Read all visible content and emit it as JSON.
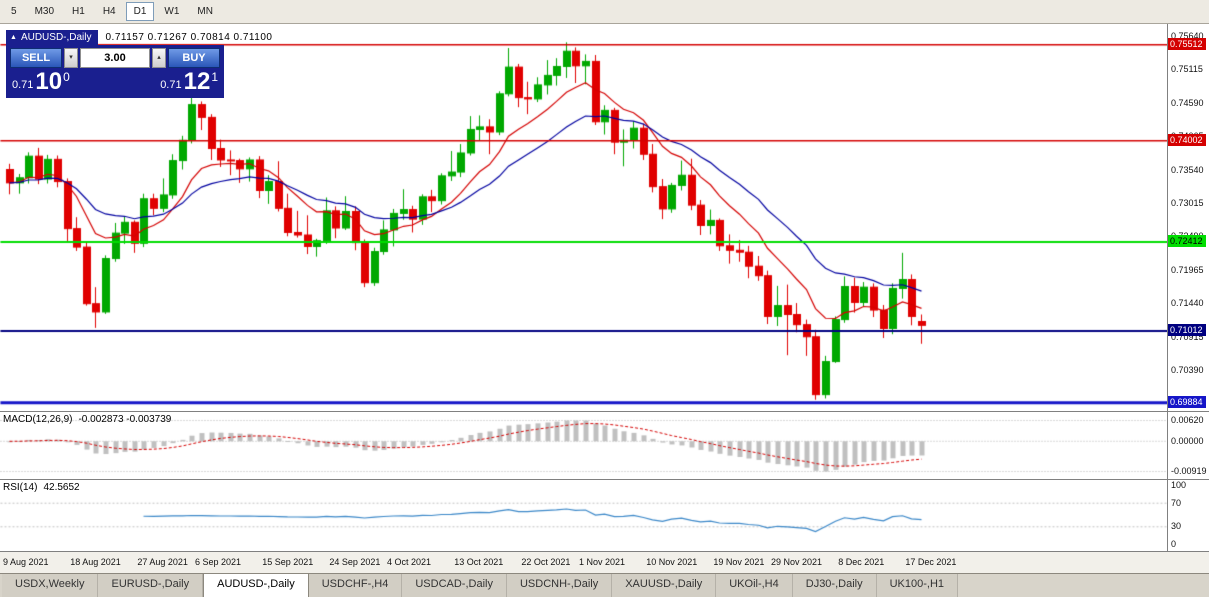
{
  "toolbar": {
    "timeframes": [
      {
        "label": "5",
        "active": false
      },
      {
        "label": "M30",
        "active": false
      },
      {
        "label": "H1",
        "active": false
      },
      {
        "label": "H4",
        "active": false
      },
      {
        "label": "D1",
        "active": true
      },
      {
        "label": "W1",
        "active": false
      },
      {
        "label": "MN",
        "active": false
      }
    ]
  },
  "chart_header": {
    "collapse_icon": "▲",
    "symbol": "AUDUSD-,Daily",
    "ohlc": "0.71157 0.71267 0.70814 0.71100"
  },
  "one_click": {
    "sell_label": "SELL",
    "buy_label": "BUY",
    "lot_value": "3.00",
    "spin_down_icon": "▾",
    "spin_up_icon": "▴",
    "bid": {
      "small": "0.71",
      "big": "10",
      "sup": "0"
    },
    "ask": {
      "small": "0.71",
      "big": "12",
      "sup": "1"
    },
    "colors": {
      "panel_bg": "#1a1f8f",
      "button": "#2a56b8"
    }
  },
  "chart_data": {
    "type": "candlestick",
    "symbol": "AUDUSD-,Daily",
    "ohlc_display": {
      "open": "0.71157",
      "high": "0.71267",
      "low": "0.70814",
      "close": "0.71100"
    },
    "price_range": [
      0.69745,
      0.7583
    ],
    "candle_up_color": "#00a800",
    "candle_down_color": "#e00000",
    "start_date": "9 Aug 2021",
    "candles": [
      [
        0.7355,
        0.7364,
        0.7316,
        0.7334
      ],
      [
        0.7334,
        0.7348,
        0.7317,
        0.7342
      ],
      [
        0.7342,
        0.7382,
        0.7333,
        0.7376
      ],
      [
        0.7376,
        0.7389,
        0.7332,
        0.734
      ],
      [
        0.734,
        0.7378,
        0.7333,
        0.7371
      ],
      [
        0.7371,
        0.7377,
        0.7327,
        0.7336
      ],
      [
        0.7336,
        0.7341,
        0.7241,
        0.7262
      ],
      [
        0.7262,
        0.728,
        0.7227,
        0.7233
      ],
      [
        0.7233,
        0.724,
        0.7141,
        0.7144
      ],
      [
        0.7144,
        0.717,
        0.7106,
        0.7131
      ],
      [
        0.7131,
        0.722,
        0.7128,
        0.7215
      ],
      [
        0.7215,
        0.7271,
        0.721,
        0.7255
      ],
      [
        0.7255,
        0.7281,
        0.7238,
        0.7272
      ],
      [
        0.7272,
        0.7275,
        0.7224,
        0.7239
      ],
      [
        0.7239,
        0.7317,
        0.7233,
        0.7309
      ],
      [
        0.7309,
        0.7317,
        0.7283,
        0.7294
      ],
      [
        0.7294,
        0.7341,
        0.7288,
        0.7315
      ],
      [
        0.7315,
        0.7379,
        0.7309,
        0.7369
      ],
      [
        0.7369,
        0.7408,
        0.7355,
        0.7401
      ],
      [
        0.7401,
        0.7478,
        0.7396,
        0.7457
      ],
      [
        0.7457,
        0.7462,
        0.7417,
        0.7437
      ],
      [
        0.7437,
        0.7442,
        0.737,
        0.7388
      ],
      [
        0.7388,
        0.7402,
        0.7359,
        0.737
      ],
      [
        0.737,
        0.7385,
        0.7346,
        0.7369
      ],
      [
        0.7369,
        0.7372,
        0.7334,
        0.7356
      ],
      [
        0.7356,
        0.7374,
        0.7336,
        0.737
      ],
      [
        0.737,
        0.7376,
        0.731,
        0.7322
      ],
      [
        0.7322,
        0.7346,
        0.7301,
        0.7336
      ],
      [
        0.7336,
        0.7368,
        0.7289,
        0.7294
      ],
      [
        0.7294,
        0.7317,
        0.725,
        0.7256
      ],
      [
        0.7256,
        0.729,
        0.7248,
        0.7252
      ],
      [
        0.7252,
        0.7283,
        0.7222,
        0.7234
      ],
      [
        0.7234,
        0.7246,
        0.7218,
        0.7243
      ],
      [
        0.7243,
        0.7311,
        0.7238,
        0.729
      ],
      [
        0.729,
        0.7297,
        0.7247,
        0.7263
      ],
      [
        0.7263,
        0.7313,
        0.726,
        0.7289
      ],
      [
        0.7289,
        0.7297,
        0.7228,
        0.724
      ],
      [
        0.724,
        0.7245,
        0.717,
        0.7177
      ],
      [
        0.7177,
        0.7232,
        0.7172,
        0.7226
      ],
      [
        0.7226,
        0.7275,
        0.7221,
        0.726
      ],
      [
        0.726,
        0.7293,
        0.7234,
        0.7286
      ],
      [
        0.7286,
        0.7324,
        0.7276,
        0.7292
      ],
      [
        0.7292,
        0.7298,
        0.7256,
        0.7277
      ],
      [
        0.7277,
        0.7316,
        0.7268,
        0.7312
      ],
      [
        0.7312,
        0.7323,
        0.7288,
        0.7306
      ],
      [
        0.7306,
        0.7349,
        0.73,
        0.7345
      ],
      [
        0.7345,
        0.7384,
        0.7337,
        0.7351
      ],
      [
        0.7351,
        0.7395,
        0.7343,
        0.7381
      ],
      [
        0.7381,
        0.7439,
        0.7377,
        0.7418
      ],
      [
        0.7418,
        0.744,
        0.7401,
        0.7422
      ],
      [
        0.7422,
        0.7434,
        0.7379,
        0.7414
      ],
      [
        0.7414,
        0.7478,
        0.7409,
        0.7474
      ],
      [
        0.7474,
        0.7546,
        0.747,
        0.7516
      ],
      [
        0.7516,
        0.7521,
        0.7453,
        0.7468
      ],
      [
        0.7468,
        0.7493,
        0.7442,
        0.7466
      ],
      [
        0.7466,
        0.75,
        0.7461,
        0.7488
      ],
      [
        0.7488,
        0.7527,
        0.7473,
        0.7503
      ],
      [
        0.7503,
        0.753,
        0.7487,
        0.7517
      ],
      [
        0.7517,
        0.7555,
        0.7499,
        0.7541
      ],
      [
        0.7541,
        0.7547,
        0.7491,
        0.7518
      ],
      [
        0.7518,
        0.7536,
        0.7489,
        0.7525
      ],
      [
        0.7525,
        0.7535,
        0.7425,
        0.743
      ],
      [
        0.743,
        0.7456,
        0.741,
        0.7448
      ],
      [
        0.7448,
        0.7452,
        0.7379,
        0.7398
      ],
      [
        0.7398,
        0.7418,
        0.736,
        0.7401
      ],
      [
        0.7401,
        0.7431,
        0.7388,
        0.742
      ],
      [
        0.742,
        0.7427,
        0.737,
        0.7379
      ],
      [
        0.7379,
        0.7395,
        0.7319,
        0.7328
      ],
      [
        0.7328,
        0.734,
        0.7277,
        0.7293
      ],
      [
        0.7293,
        0.7334,
        0.7287,
        0.733
      ],
      [
        0.733,
        0.7369,
        0.7322,
        0.7346
      ],
      [
        0.7346,
        0.7372,
        0.7291,
        0.7299
      ],
      [
        0.7299,
        0.7307,
        0.7252,
        0.7267
      ],
      [
        0.7267,
        0.7292,
        0.7253,
        0.7275
      ],
      [
        0.7275,
        0.7278,
        0.7227,
        0.7235
      ],
      [
        0.7235,
        0.7253,
        0.7207,
        0.7228
      ],
      [
        0.7228,
        0.7244,
        0.721,
        0.7225
      ],
      [
        0.7225,
        0.7235,
        0.7184,
        0.7203
      ],
      [
        0.7203,
        0.7219,
        0.718,
        0.7188
      ],
      [
        0.7188,
        0.7196,
        0.7112,
        0.7124
      ],
      [
        0.7124,
        0.7172,
        0.7109,
        0.7141
      ],
      [
        0.7141,
        0.7174,
        0.7063,
        0.7127
      ],
      [
        0.7127,
        0.7145,
        0.7099,
        0.7111
      ],
      [
        0.7111,
        0.7119,
        0.7062,
        0.7092
      ],
      [
        0.7092,
        0.7103,
        0.6993,
        0.7001
      ],
      [
        0.7001,
        0.7062,
        0.6995,
        0.7053
      ],
      [
        0.7053,
        0.7124,
        0.7051,
        0.7119
      ],
      [
        0.7119,
        0.7187,
        0.7114,
        0.7171
      ],
      [
        0.7171,
        0.7185,
        0.713,
        0.7146
      ],
      [
        0.7146,
        0.7178,
        0.7139,
        0.717
      ],
      [
        0.717,
        0.7176,
        0.7123,
        0.7134
      ],
      [
        0.7134,
        0.7142,
        0.709,
        0.7105
      ],
      [
        0.7105,
        0.7176,
        0.7096,
        0.7168
      ],
      [
        0.7168,
        0.7224,
        0.7152,
        0.7182
      ],
      [
        0.7182,
        0.719,
        0.711,
        0.7124
      ],
      [
        0.7116,
        0.7127,
        0.7081,
        0.711
      ]
    ],
    "date_axis": [
      {
        "label": "9 Aug 2021",
        "i": 0
      },
      {
        "label": "18 Aug 2021",
        "i": 7
      },
      {
        "label": "27 Aug 2021",
        "i": 14
      },
      {
        "label": "6 Sep 2021",
        "i": 20
      },
      {
        "label": "15 Sep 2021",
        "i": 27
      },
      {
        "label": "24 Sep 2021",
        "i": 34
      },
      {
        "label": "4 Oct 2021",
        "i": 40
      },
      {
        "label": "13 Oct 2021",
        "i": 47
      },
      {
        "label": "22 Oct 2021",
        "i": 54
      },
      {
        "label": "1 Nov 2021",
        "i": 60
      },
      {
        "label": "10 Nov 2021",
        "i": 67
      },
      {
        "label": "19 Nov 2021",
        "i": 74
      },
      {
        "label": "29 Nov 2021",
        "i": 80
      },
      {
        "label": "8 Dec 2021",
        "i": 87
      },
      {
        "label": "17 Dec 2021",
        "i": 94
      }
    ],
    "price_axis_ticks": [
      "0.75640",
      "0.75115",
      "0.74590",
      "0.74065",
      "0.73540",
      "0.73015",
      "0.72490",
      "0.71965",
      "0.71440",
      "0.70915",
      "0.70390"
    ],
    "hlines": [
      {
        "value": 0.75512,
        "label": "0.75512",
        "color": "#d40000",
        "text": "#ffffff",
        "width": 1.5
      },
      {
        "value": 0.74002,
        "label": "0.74002",
        "color": "#d40000",
        "text": "#ffffff",
        "width": 1.5
      },
      {
        "value": 0.72412,
        "label": "0.72412",
        "color": "#00dd00",
        "text": "#000000",
        "width": 2
      },
      {
        "value": 0.71012,
        "label": "0.71012",
        "color": "#000080",
        "text": "#ffffff",
        "width": 2
      },
      {
        "value": 0.69884,
        "label": "0.69884",
        "color": "#1515c8",
        "text": "#ffffff",
        "width": 3
      }
    ],
    "moving_averages": [
      {
        "period": 10,
        "method": "ema",
        "color": "#d40000"
      },
      {
        "period": 21,
        "method": "ema",
        "color": "#0000a0"
      }
    ],
    "macd": {
      "label": "MACD(12,26,9)",
      "values_text": "-0.002873 -0.003739",
      "fast": 12,
      "slow": 26,
      "signal": 9,
      "axis_labels": [
        "0.00620",
        "0.00000",
        "-0.00919"
      ],
      "hist_color": "#c0c0c0",
      "signal_color": "#d40000"
    },
    "rsi": {
      "label": "RSI(14)",
      "value_text": "42.5652",
      "period": 14,
      "levels": [
        "100",
        "70",
        "30",
        "0"
      ],
      "level_values": [
        100,
        70,
        30,
        0
      ],
      "color": "#3a87c8"
    }
  },
  "tabs": [
    {
      "label": "USDX,Weekly",
      "active": false
    },
    {
      "label": "EURUSD-,Daily",
      "active": false
    },
    {
      "label": "AUDUSD-,Daily",
      "active": true
    },
    {
      "label": "USDCHF-,H4",
      "active": false
    },
    {
      "label": "USDCAD-,Daily",
      "active": false
    },
    {
      "label": "USDCNH-,Daily",
      "active": false
    },
    {
      "label": "XAUUSD-,Daily",
      "active": false
    },
    {
      "label": "UKOil-,H4",
      "active": false
    },
    {
      "label": "DJ30-,Daily",
      "active": false
    },
    {
      "label": "UK100-,H1",
      "active": false
    }
  ]
}
